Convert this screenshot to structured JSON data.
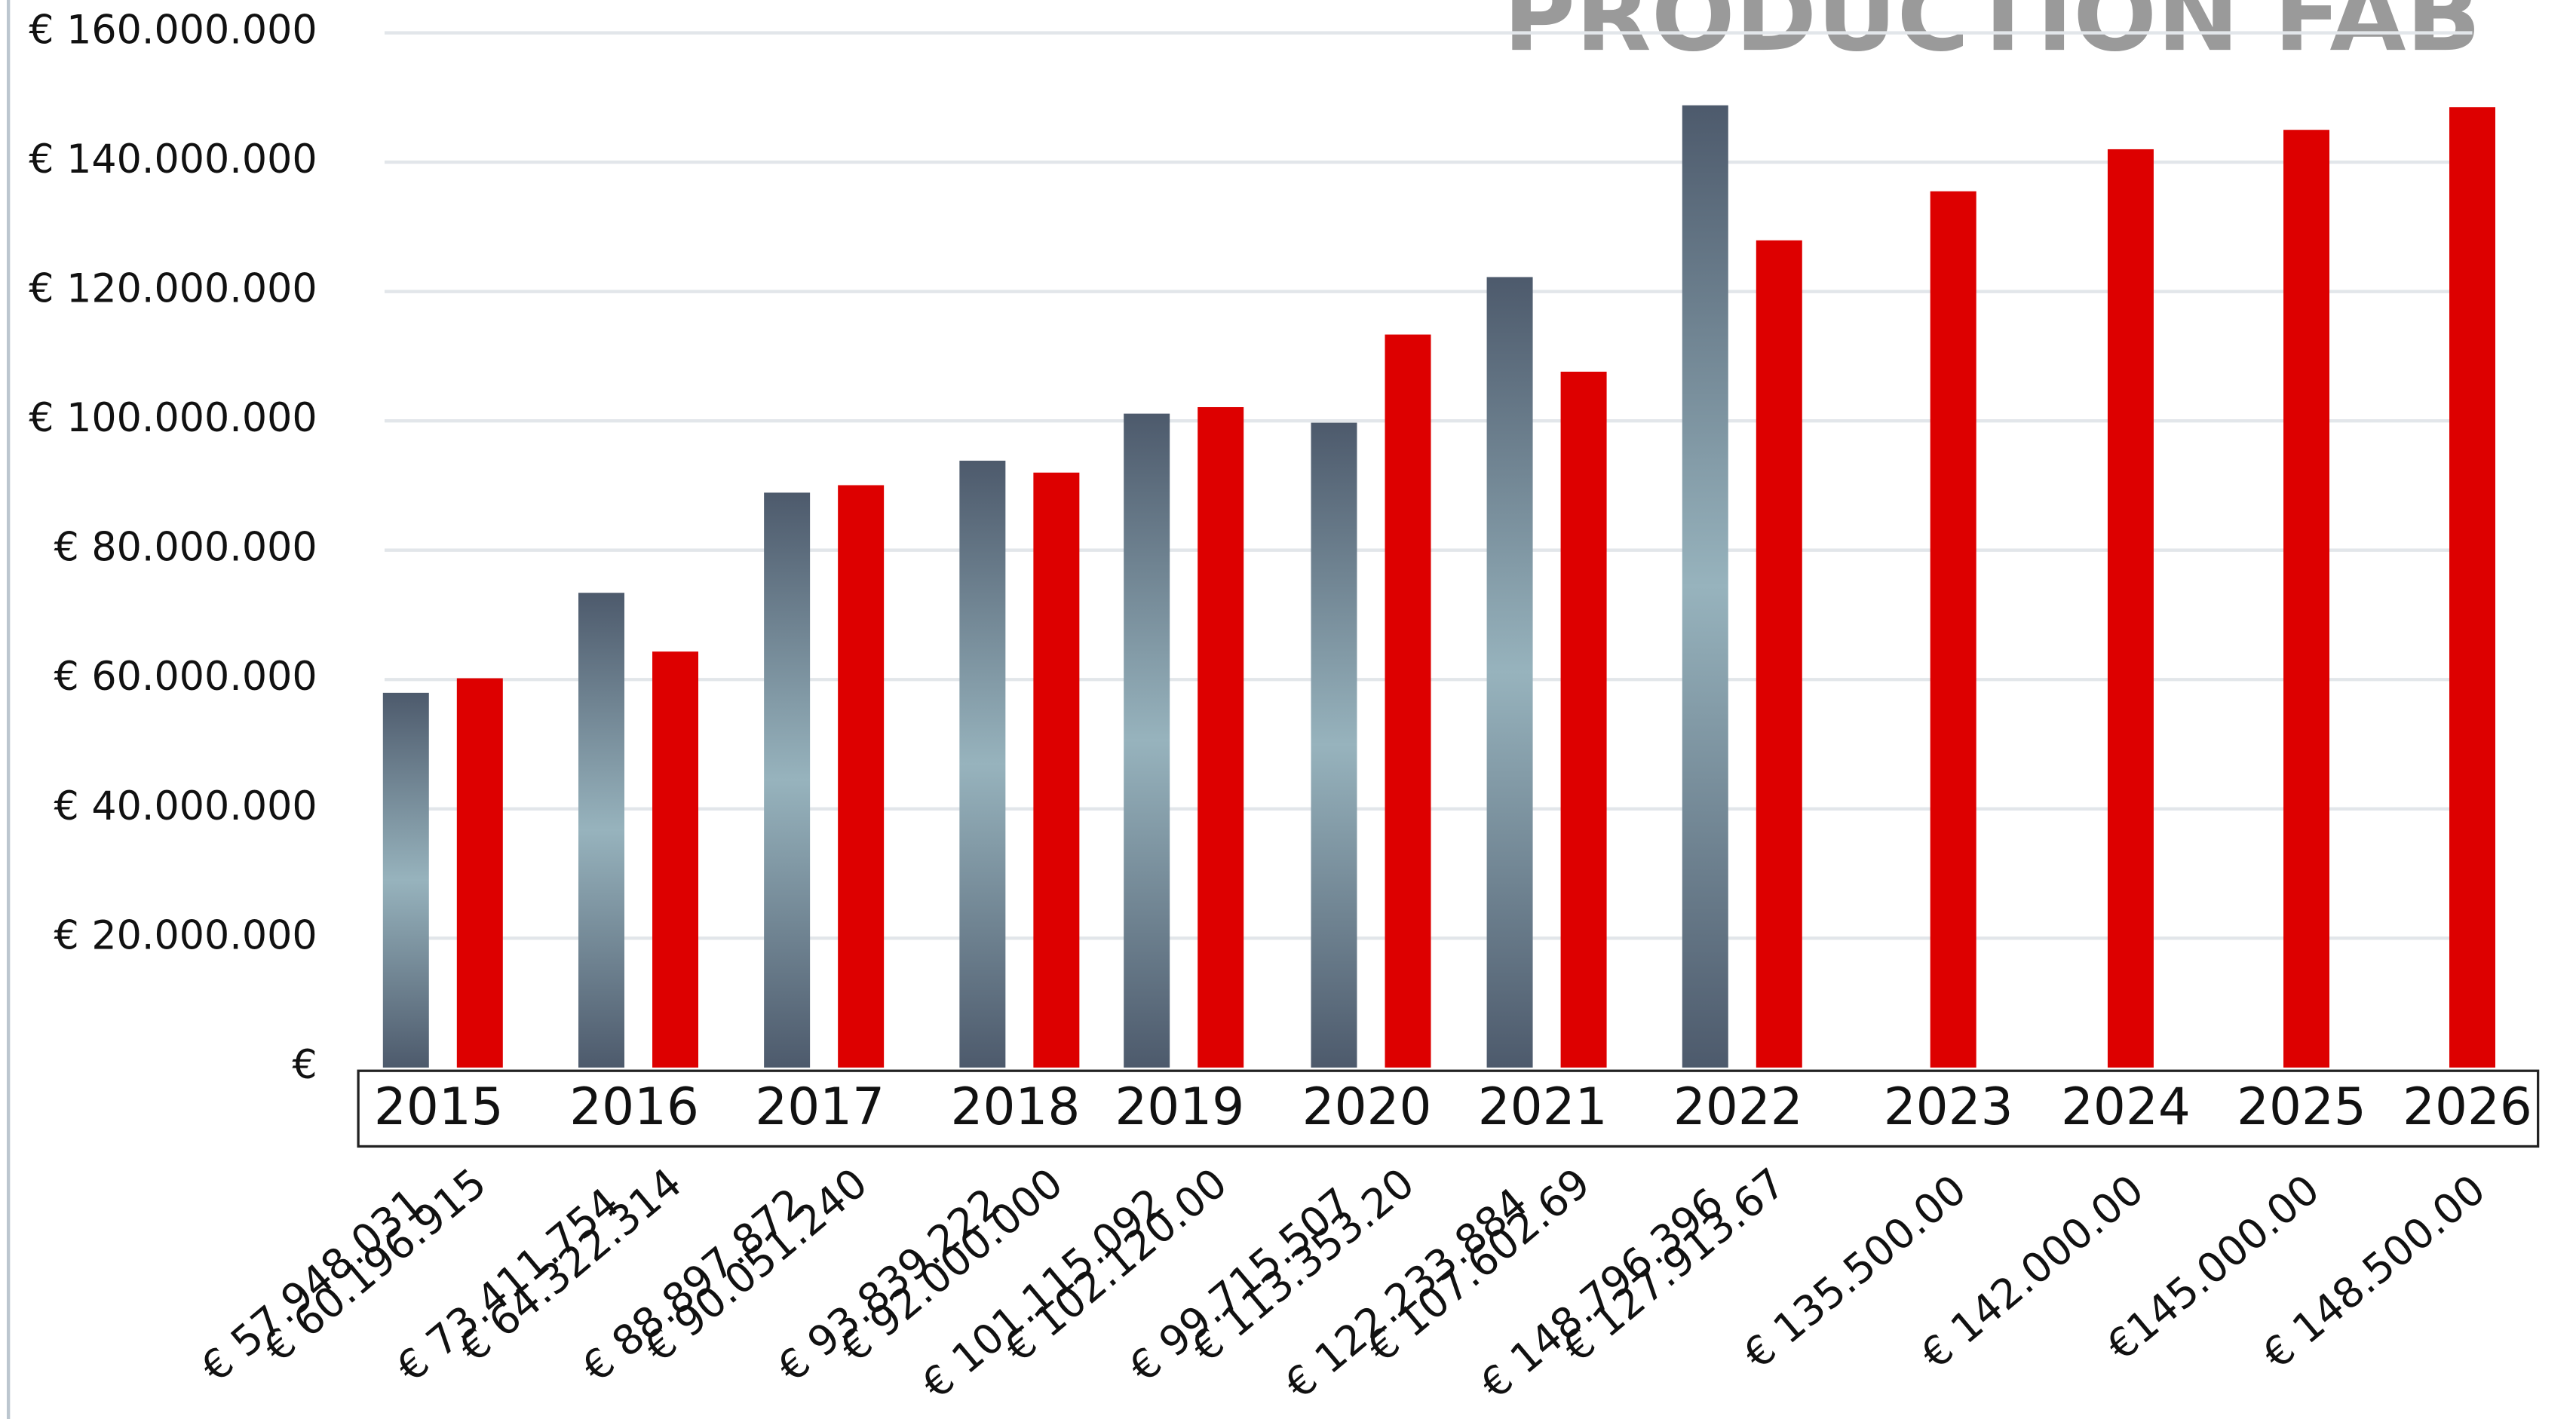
{
  "chart_data": {
    "type": "bar",
    "title": "PRODUCTION FAB",
    "categories": [
      "2015",
      "2016",
      "2017",
      "2018",
      "2019",
      "2020",
      "2021",
      "2022",
      "2023",
      "2024",
      "2025",
      "2026"
    ],
    "series": [
      {
        "color": "#4d5a6c",
        "values": [
          57948031,
          73411754,
          88897872,
          93839222,
          101115092,
          99715507,
          122233884,
          148796396,
          null,
          null,
          null,
          null
        ],
        "value_labels": [
          "€ 57.948.031",
          "€ 73.411.754",
          "€ 88.897.872",
          "€ 93.839.222",
          "€ 101.115.092",
          "€ 99.715.507",
          "€ 122.233.884",
          "€ 148.796.396",
          null,
          null,
          null,
          null
        ]
      },
      {
        "color": "#dd0000",
        "values": [
          60196915,
          64322314,
          90051240,
          92000000,
          102120000,
          113353200,
          107602690,
          127913670,
          135500000,
          142000000,
          145000000,
          148500000
        ],
        "value_labels": [
          "€ 60.196.915",
          "€ 64.322.314",
          "€ 90.051.240",
          "€ 92.000.000",
          "€ 102.120.00",
          "€ 113.353.20",
          "€ 107.602.69",
          "€ 127.913.67",
          "€ 135.500.00",
          "€ 142.000.00",
          "€145.000.00",
          "€ 148.500.00"
        ]
      }
    ],
    "ylim": [
      0,
      160000000
    ],
    "yticks": [
      {
        "value": 0,
        "label": "€"
      },
      {
        "value": 20000000,
        "label": "€ 20.000.000"
      },
      {
        "value": 40000000,
        "label": "€ 40.000.000"
      },
      {
        "value": 60000000,
        "label": "€ 60.000.000"
      },
      {
        "value": 80000000,
        "label": "€ 80.000.000"
      },
      {
        "value": 100000000,
        "label": "€ 100.000.000"
      },
      {
        "value": 120000000,
        "label": "€ 120.000.000"
      },
      {
        "value": 140000000,
        "label": "€ 140.000.000"
      },
      {
        "value": 160000000,
        "label": "€ 160.000.000"
      }
    ],
    "grid": true
  }
}
